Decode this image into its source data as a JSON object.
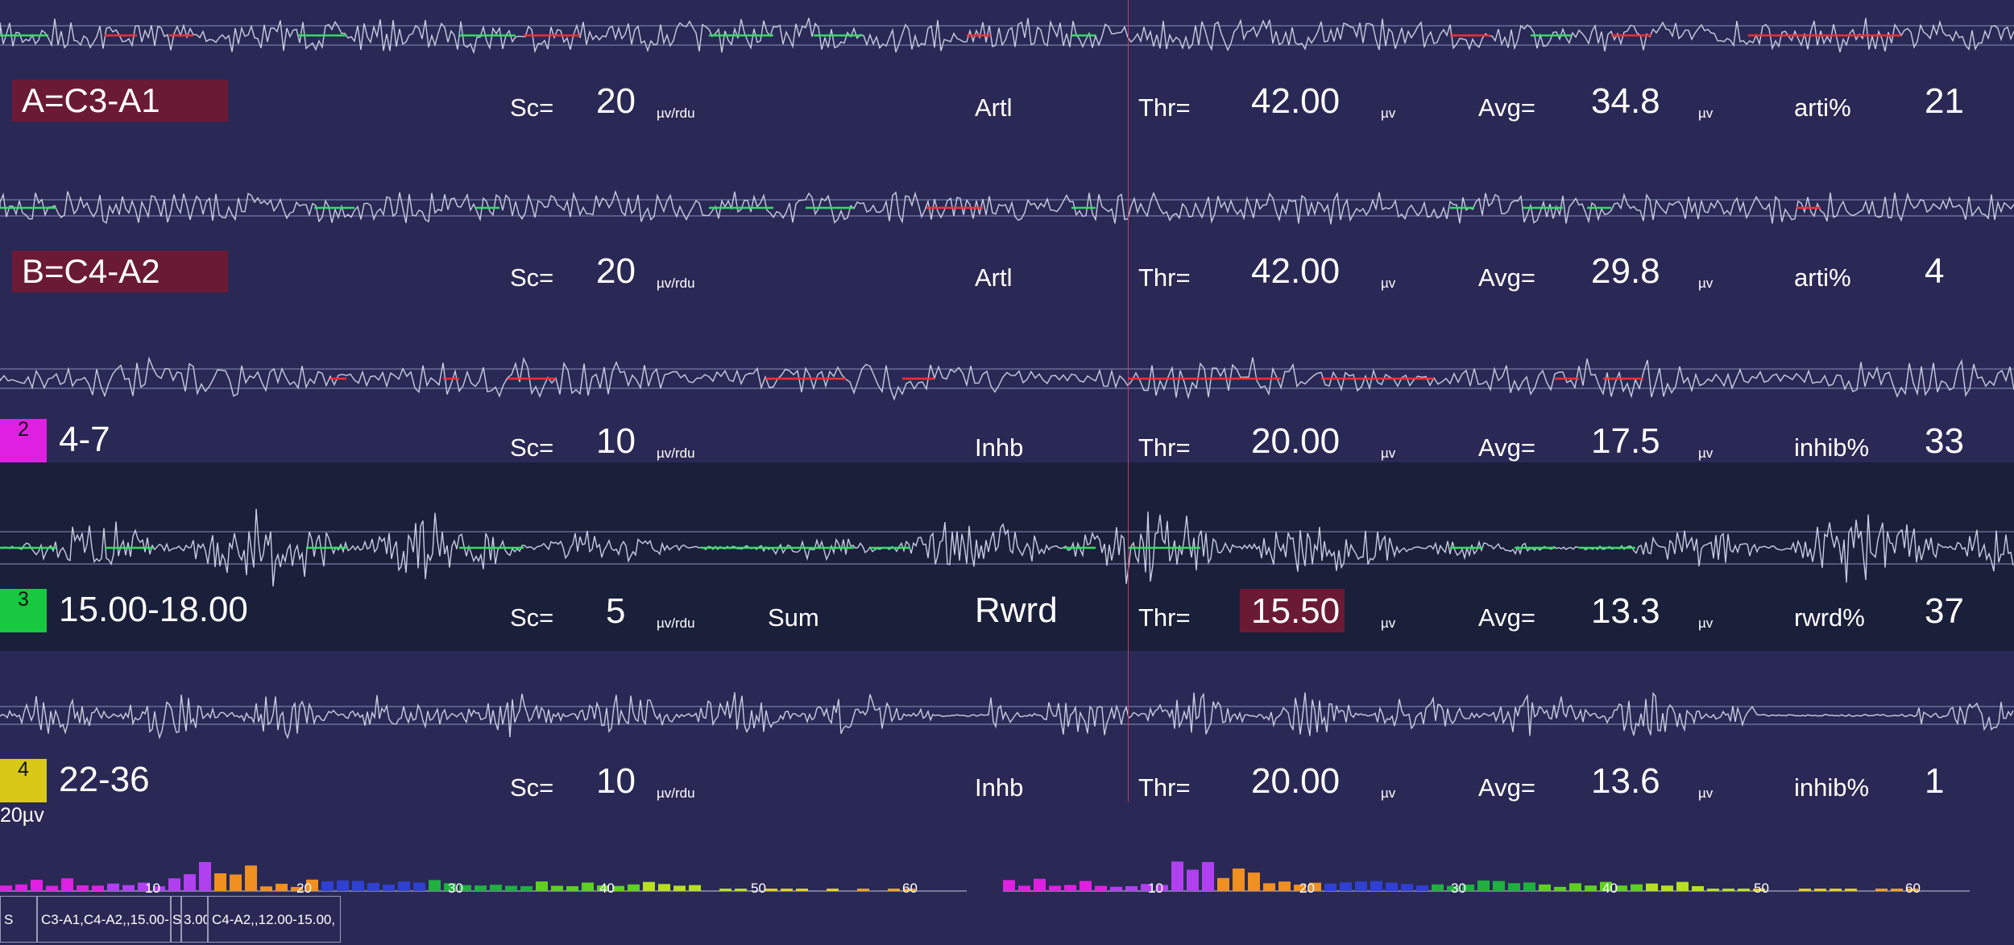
{
  "channels": [
    {
      "name": "A=C3-A1",
      "sc": "20",
      "mode": "Artl",
      "thr": "42.00",
      "avg": "34.8",
      "pct_label": "arti%",
      "pct": "21",
      "artifact_color": "#ff3030"
    },
    {
      "name": "B=C4-A2",
      "sc": "20",
      "mode": "Artl",
      "thr": "42.00",
      "avg": "29.8",
      "pct_label": "arti%",
      "pct": "4",
      "artifact_color": "#ff3030"
    },
    {
      "number": "2",
      "range": "4-7",
      "sc": "10",
      "mode": "Inhb",
      "thr": "20.00",
      "avg": "17.5",
      "pct_label": "inhib%",
      "pct": "33",
      "badge_color": "#e020e0"
    },
    {
      "number": "3",
      "range": "15.00-18.00",
      "sc": "5",
      "extra": "Sum",
      "mode": "Rwrd",
      "thr": "15.50",
      "avg": "13.3",
      "pct_label": "rwrd%",
      "pct": "37",
      "badge_color": "#18c840"
    },
    {
      "number": "4",
      "range": "22-36",
      "sc": "10",
      "mode": "Inhb",
      "thr": "20.00",
      "avg": "13.6",
      "pct_label": "inhib%",
      "pct": "1",
      "badge_color": "#d8c818"
    }
  ],
  "labels": {
    "sc": "Sc=",
    "thr": "Thr=",
    "avg": "Avg=",
    "sc_unit": "µv/rdu",
    "unit": "µv"
  },
  "scale_marker": "20µv",
  "spectra": {
    "ticks": [
      "10",
      "20",
      "30",
      "40",
      "50",
      "60"
    ],
    "colors": [
      "#e020e0",
      "#b040f0",
      "#f09020",
      "#3040d0",
      "#20b040",
      "#60d020",
      "#b8e020",
      "#e0d020",
      "#f0a020"
    ]
  },
  "status_bar": [
    {
      "text": "S"
    },
    {
      "text": "C3-A1,C4-A2,,15.00-"
    },
    {
      "text": "S"
    },
    {
      "text": "3.00"
    },
    {
      "text": "C4-A2,,12.00-15.00,"
    }
  ]
}
